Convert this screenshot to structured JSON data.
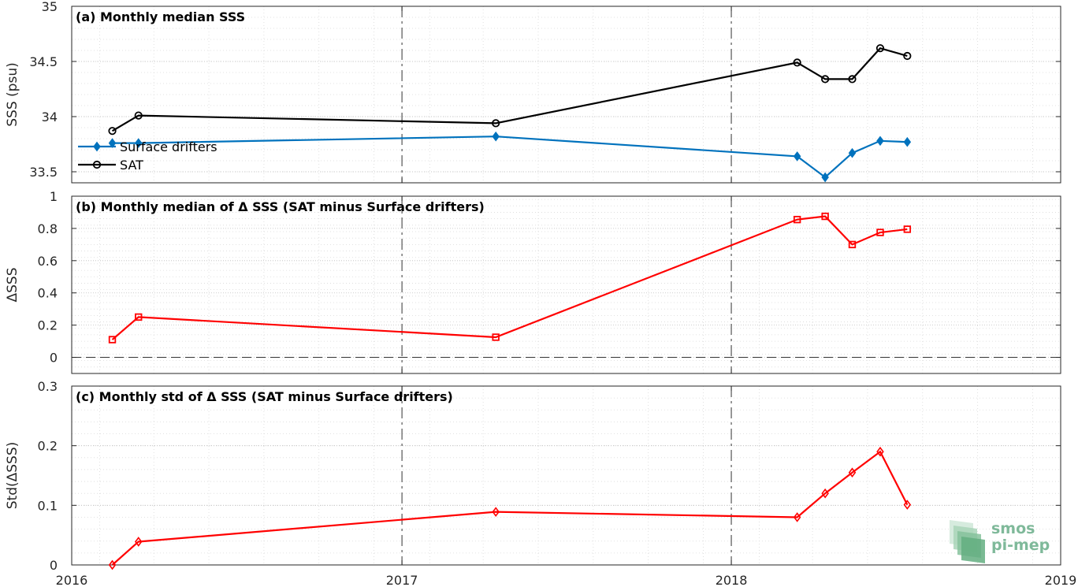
{
  "chart_data": [
    {
      "type": "line",
      "title": "(a) Monthly median SSS",
      "ylabel": "SSS (psu)",
      "xlim": [
        "2016-01-01",
        "2019-01-01"
      ],
      "ylim": [
        33.4,
        35
      ],
      "x_ticks": [
        "2016",
        "2017",
        "2018",
        "2019"
      ],
      "y_ticks": [
        "33.5",
        "34",
        "34.5",
        "35"
      ],
      "legend": {
        "placement": "bottom-left",
        "entries": [
          "Surface drifters",
          "SAT"
        ]
      },
      "series": [
        {
          "name": "Surface drifters",
          "color": "#0072BD",
          "marker": "diamond",
          "x": [
            "2016-02-15",
            "2016-03-15",
            "2017-04-15",
            "2018-03-15",
            "2018-04-15",
            "2018-05-15",
            "2018-06-15",
            "2018-07-15"
          ],
          "values": [
            33.76,
            33.76,
            33.82,
            33.64,
            33.45,
            33.67,
            33.78,
            33.77
          ]
        },
        {
          "name": "SAT",
          "color": "#000000",
          "marker": "circle",
          "x": [
            "2016-02-15",
            "2016-03-15",
            "2017-04-15",
            "2018-03-15",
            "2018-04-15",
            "2018-05-15",
            "2018-06-15",
            "2018-07-15"
          ],
          "values": [
            33.87,
            34.01,
            33.94,
            34.49,
            34.34,
            34.34,
            34.62,
            34.55
          ]
        }
      ],
      "grid": true
    },
    {
      "type": "line",
      "title": "(b) Monthly median of Δ SSS (SAT minus Surface drifters)",
      "ylabel": "ΔSSS",
      "xlim": [
        "2016-01-01",
        "2019-01-01"
      ],
      "ylim": [
        -0.1,
        1
      ],
      "x_ticks": [
        "2016",
        "2017",
        "2018",
        "2019"
      ],
      "y_ticks": [
        "0",
        "0.2",
        "0.4",
        "0.6",
        "0.8",
        "1"
      ],
      "reference_line": 0,
      "series": [
        {
          "color": "#FF0000",
          "marker": "square",
          "x": [
            "2016-02-15",
            "2016-03-15",
            "2017-04-15",
            "2018-03-15",
            "2018-04-15",
            "2018-05-15",
            "2018-06-15",
            "2018-07-15"
          ],
          "values": [
            0.11,
            0.25,
            0.125,
            0.855,
            0.875,
            0.7,
            0.775,
            0.795
          ]
        }
      ],
      "grid": true
    },
    {
      "type": "line",
      "title": "(c) Monthly std of Δ SSS (SAT minus Surface drifters)",
      "ylabel": "Std(ΔSSS)",
      "xlim": [
        "2016-01-01",
        "2019-01-01"
      ],
      "ylim": [
        0,
        0.3
      ],
      "x_ticks": [
        "2016",
        "2017",
        "2018",
        "2019"
      ],
      "y_ticks": [
        "0",
        "0.1",
        "0.2",
        "0.3"
      ],
      "series": [
        {
          "color": "#FF0000",
          "marker": "diamond",
          "x": [
            "2016-02-15",
            "2016-03-15",
            "2017-04-15",
            "2018-03-15",
            "2018-04-15",
            "2018-05-15",
            "2018-06-15",
            "2018-07-15"
          ],
          "values": [
            0.0,
            0.039,
            0.089,
            0.08,
            0.12,
            0.155,
            0.19,
            0.101
          ]
        }
      ],
      "grid": true
    }
  ],
  "logo": {
    "line1": "smos",
    "line2": "pi-mep"
  }
}
